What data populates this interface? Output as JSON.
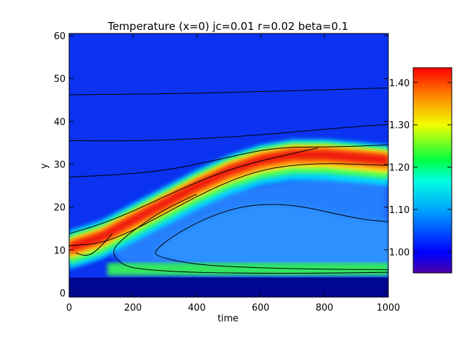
{
  "chart_data": {
    "type": "heatmap",
    "title": "Temperature (x=0) jc=0.01 r=0.02 beta=0.1",
    "xlabel": "time",
    "ylabel": "y",
    "xlim": [
      0,
      1000
    ],
    "ylim": [
      -1,
      60.5
    ],
    "x_ticks": [
      0,
      200,
      400,
      600,
      800,
      1000
    ],
    "y_ticks": [
      0,
      10,
      20,
      30,
      40,
      50,
      60
    ],
    "colorbar": {
      "range": [
        0.95,
        1.435
      ],
      "ticks": [
        "1.00",
        "1.10",
        "1.20",
        "1.30",
        "1.40"
      ],
      "tick_values": [
        1.0,
        1.1,
        1.2,
        1.3,
        1.4
      ],
      "colormap": "rainbow (purple-blue-cyan-green-yellow-red)"
    },
    "grid": false,
    "band_ridge": [
      {
        "time": 0,
        "y": 10.5
      },
      {
        "time": 100,
        "y": 13
      },
      {
        "time": 200,
        "y": 17
      },
      {
        "time": 300,
        "y": 21
      },
      {
        "time": 400,
        "y": 25
      },
      {
        "time": 500,
        "y": 28.5
      },
      {
        "time": 600,
        "y": 31
      },
      {
        "time": 700,
        "y": 32.3
      },
      {
        "time": 800,
        "y": 32.3
      },
      {
        "time": 900,
        "y": 31.7
      },
      {
        "time": 1000,
        "y": 31
      }
    ],
    "contours": [
      {
        "name": "ambient-upper",
        "points": [
          [
            0,
            46.2
          ],
          [
            300,
            46.4
          ],
          [
            600,
            46.9
          ],
          [
            1000,
            47.8
          ]
        ]
      },
      {
        "name": "ambient-middle",
        "points": [
          [
            0,
            35.5
          ],
          [
            200,
            35.4
          ],
          [
            400,
            35.9
          ],
          [
            600,
            36.8
          ],
          [
            800,
            38.2
          ],
          [
            1000,
            39.3
          ]
        ]
      },
      {
        "name": "band-outer-top",
        "points": [
          [
            0,
            27
          ],
          [
            150,
            27.5
          ],
          [
            300,
            28.5
          ],
          [
            450,
            30.8
          ],
          [
            600,
            33.3
          ],
          [
            700,
            34
          ],
          [
            800,
            34
          ],
          [
            900,
            34.2
          ],
          [
            1000,
            34.5
          ]
        ]
      },
      {
        "name": "band-inner-top",
        "points": [
          [
            0,
            13.8
          ],
          [
            100,
            16
          ],
          [
            200,
            19
          ],
          [
            300,
            22.5
          ],
          [
            400,
            25.8
          ],
          [
            500,
            28.7
          ],
          [
            600,
            30.8
          ],
          [
            700,
            32.5
          ],
          [
            780,
            33.8
          ]
        ]
      },
      {
        "name": "band-inner-bottom",
        "points": [
          [
            20,
            9.3
          ],
          [
            60,
            8.4
          ],
          [
            100,
            10.8
          ],
          [
            135,
            13.8
          ]
        ]
      },
      {
        "name": "band-outer-bottom",
        "points": [
          [
            0,
            11
          ],
          [
            100,
            11.5
          ],
          [
            200,
            14.5
          ],
          [
            300,
            18.5
          ],
          [
            400,
            22.5
          ],
          [
            500,
            26
          ],
          [
            600,
            28.6
          ],
          [
            700,
            29.8
          ],
          [
            800,
            30.2
          ],
          [
            900,
            30
          ],
          [
            1000,
            29.7
          ]
        ]
      },
      {
        "name": "lower-loop",
        "points": [
          [
            1000,
            5.4
          ],
          [
            800,
            5.5
          ],
          [
            600,
            5.8
          ],
          [
            400,
            6.5
          ],
          [
            270,
            8.5
          ],
          [
            270,
            10
          ],
          [
            330,
            13.5
          ],
          [
            430,
            17.5
          ],
          [
            530,
            20
          ],
          [
            630,
            20.8
          ],
          [
            730,
            20.2
          ],
          [
            830,
            18.5
          ],
          [
            930,
            17
          ],
          [
            1000,
            16.6
          ]
        ]
      },
      {
        "name": "outer-lower-loop",
        "points": [
          [
            1000,
            4.8
          ],
          [
            700,
            4.5
          ],
          [
            400,
            4.7
          ],
          [
            250,
            5.3
          ],
          [
            170,
            6.2
          ],
          [
            130,
            9.5
          ],
          [
            170,
            12.8
          ],
          [
            230,
            16
          ],
          [
            300,
            19.5
          ],
          [
            400,
            23
          ]
        ]
      }
    ]
  }
}
